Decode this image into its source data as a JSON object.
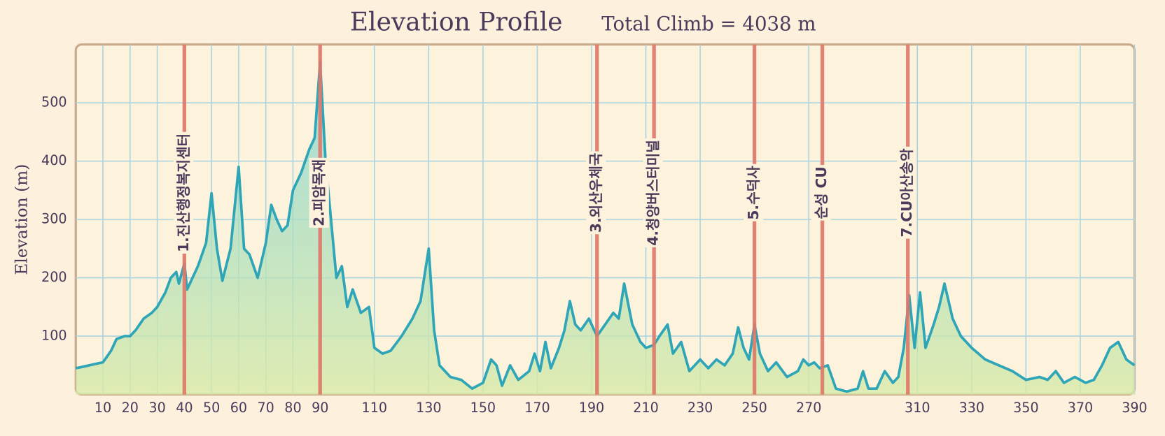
{
  "chart_data": {
    "type": "line",
    "title": "Elevation Profile",
    "subtitle": "Total Climb = 4038 m",
    "y_label": "Elevation (m)",
    "color": "#2fa5b8",
    "grid": true,
    "xlim": [
      0,
      390
    ],
    "ylim": [
      0,
      600
    ],
    "xticks": [
      10,
      20,
      30,
      40,
      50,
      60,
      70,
      80,
      90,
      110,
      130,
      150,
      170,
      190,
      210,
      230,
      250,
      270,
      310,
      330,
      350,
      370,
      390
    ],
    "yticks": [
      100,
      200,
      300,
      400,
      500
    ],
    "markers": [
      {
        "x": 40,
        "label": "1.진산행정복지센터"
      },
      {
        "x": 90,
        "label": "2.피암목재"
      },
      {
        "x": 192,
        "label": "3.외산우체국"
      },
      {
        "x": 213,
        "label": "4.청양버스터미널"
      },
      {
        "x": 250,
        "label": "5.수덕사"
      },
      {
        "x": 275,
        "label": "순성 CU"
      },
      {
        "x": 306.5,
        "label": "7.CU아산송악"
      }
    ],
    "x": [
      0,
      5,
      10,
      13,
      15,
      18,
      20,
      22,
      25,
      28,
      30,
      33,
      35,
      37,
      38,
      40,
      41,
      43,
      45,
      48,
      50,
      52,
      54,
      57,
      60,
      62,
      64,
      67,
      70,
      72,
      74,
      76,
      78,
      80,
      83,
      86,
      88,
      90,
      92,
      94,
      96,
      98,
      100,
      102,
      105,
      108,
      110,
      113,
      116,
      120,
      124,
      127,
      130,
      132,
      134,
      138,
      142,
      146,
      150,
      153,
      155,
      157,
      160,
      163,
      167,
      169,
      171,
      173,
      175,
      178,
      180,
      182,
      184,
      186,
      189,
      192,
      195,
      198,
      200,
      202,
      205,
      208,
      210,
      213,
      215,
      218,
      220,
      223,
      226,
      230,
      233,
      236,
      239,
      242,
      244,
      246,
      248,
      250,
      252,
      255,
      258,
      262,
      266,
      268,
      270,
      272,
      274,
      277,
      280,
      284,
      288,
      290,
      292,
      295,
      298,
      301,
      303,
      305,
      307,
      309,
      311,
      313,
      316,
      318,
      320,
      323,
      326,
      330,
      335,
      340,
      345,
      350,
      355,
      358,
      361,
      364,
      368,
      372,
      375,
      378,
      381,
      384,
      387,
      390
    ],
    "values": [
      45,
      50,
      55,
      75,
      95,
      100,
      100,
      110,
      130,
      140,
      150,
      175,
      200,
      210,
      190,
      225,
      180,
      200,
      220,
      260,
      345,
      250,
      195,
      250,
      390,
      250,
      240,
      200,
      260,
      325,
      300,
      280,
      290,
      350,
      380,
      420,
      440,
      570,
      400,
      300,
      200,
      220,
      150,
      180,
      140,
      150,
      80,
      70,
      75,
      100,
      130,
      160,
      250,
      110,
      50,
      30,
      25,
      10,
      20,
      60,
      50,
      15,
      50,
      25,
      40,
      70,
      40,
      90,
      45,
      80,
      110,
      160,
      120,
      110,
      130,
      100,
      120,
      140,
      130,
      190,
      120,
      90,
      80,
      85,
      100,
      120,
      70,
      90,
      40,
      60,
      45,
      60,
      50,
      70,
      115,
      80,
      60,
      120,
      70,
      40,
      55,
      30,
      40,
      60,
      50,
      55,
      45,
      50,
      10,
      5,
      10,
      40,
      10,
      10,
      40,
      20,
      30,
      80,
      170,
      80,
      175,
      80,
      120,
      150,
      190,
      130,
      100,
      80,
      60,
      50,
      40,
      25,
      30,
      25,
      40,
      20,
      30,
      20,
      25,
      50,
      80,
      90,
      60,
      50
    ]
  }
}
